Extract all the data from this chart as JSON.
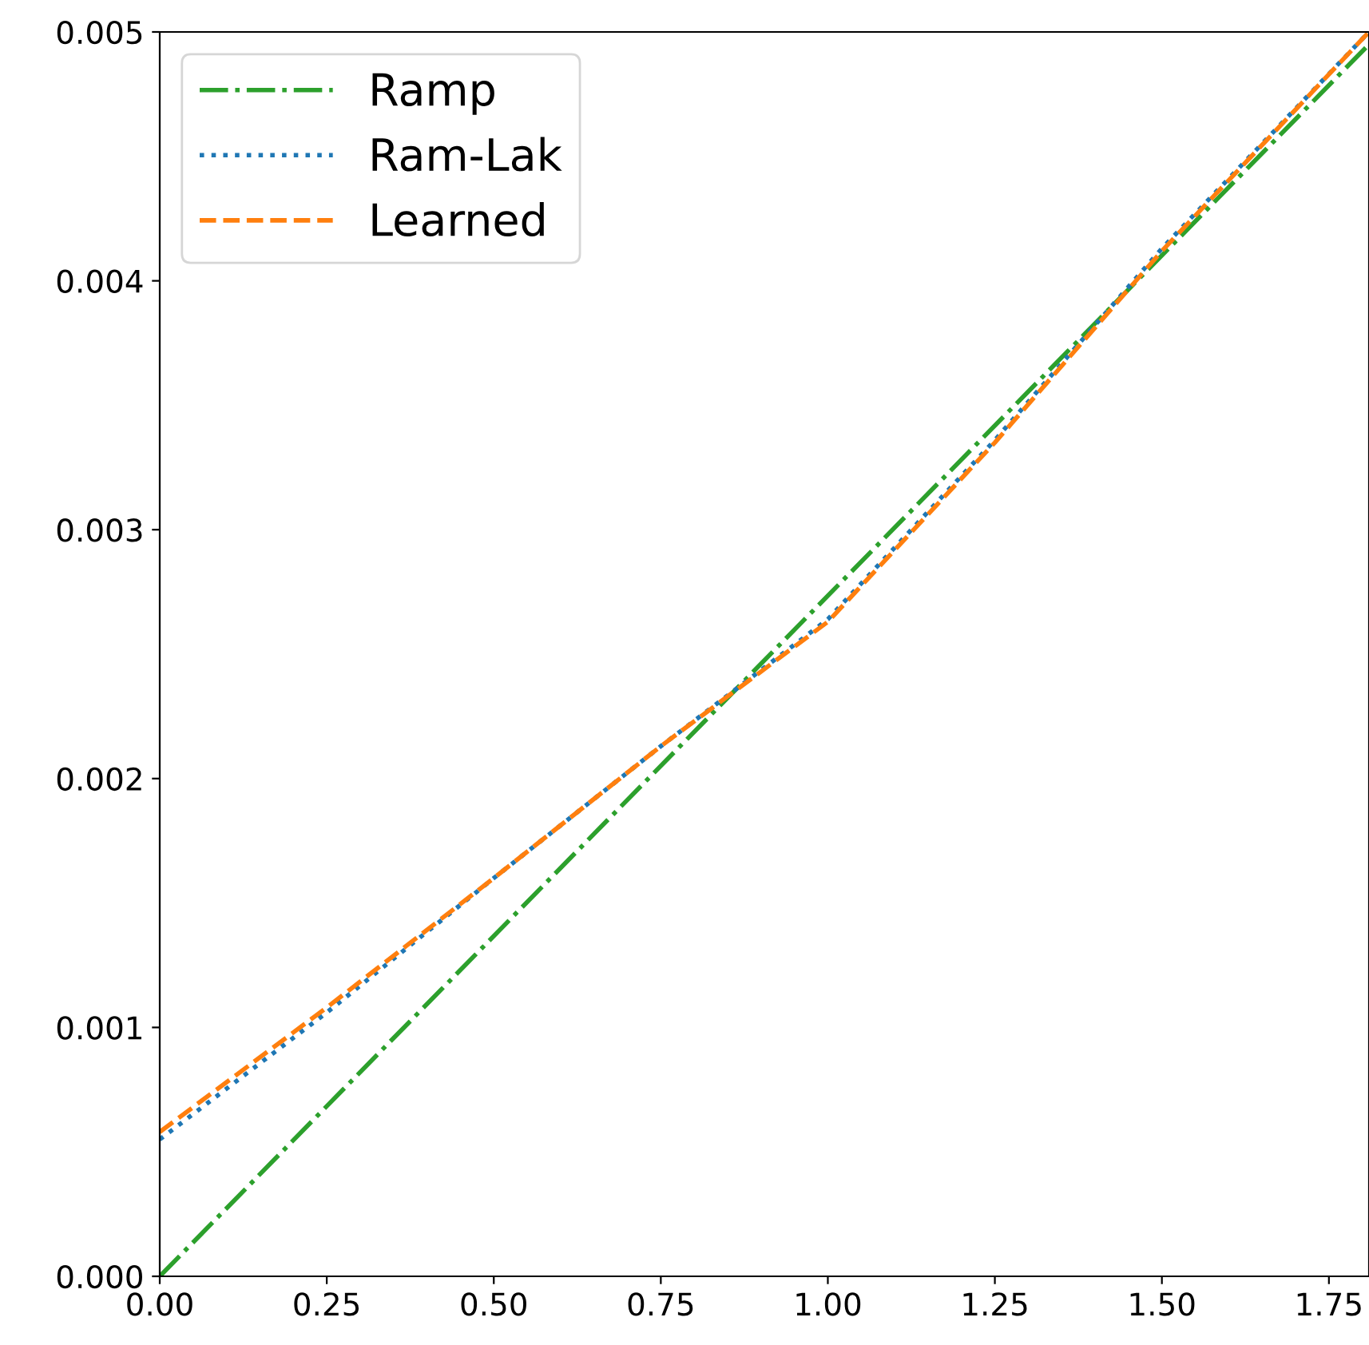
{
  "chart_data": {
    "type": "line",
    "xlim": [
      0,
      1.81
    ],
    "ylim": [
      0,
      0.005
    ],
    "xticks": [
      {
        "value": 0,
        "label": "0.00"
      },
      0.25,
      {
        "value": 0.5,
        "label": "0.50"
      },
      0.75,
      {
        "value": 1,
        "label": "1.00"
      },
      1.25,
      {
        "value": 1.5,
        "label": "1.50"
      },
      1.75
    ],
    "yticks": [
      {
        "value": 0,
        "label": "0.000"
      },
      0.001,
      0.002,
      0.003,
      0.004,
      {
        "value": 0.005,
        "label": "0.005"
      }
    ],
    "legend": "top left",
    "grid": false,
    "series": [
      {
        "name": "Ramp",
        "color": "#2ca02c",
        "line_style": "dashdot",
        "x": [
          0,
          1.81
        ],
        "values": [
          0,
          0.00495
        ]
      },
      {
        "name": "Ram-Lak",
        "color": "#1f77b4",
        "line_style": "dotted",
        "x": [
          0,
          0.25,
          0.5,
          0.75,
          1.0,
          1.25,
          1.5,
          1.81
        ],
        "values": [
          0.00055,
          0.00106,
          0.0016,
          0.00213,
          0.00264,
          0.00336,
          0.00413,
          0.005
        ]
      },
      {
        "name": "Learned",
        "color": "#ff7f0e",
        "line_style": "dashed",
        "x": [
          0,
          0.25,
          0.5,
          0.75,
          1.0,
          1.25,
          1.5,
          1.81
        ],
        "values": [
          0.00058,
          0.00108,
          0.0016,
          0.00213,
          0.00263,
          0.00335,
          0.00412,
          0.005
        ]
      }
    ]
  }
}
